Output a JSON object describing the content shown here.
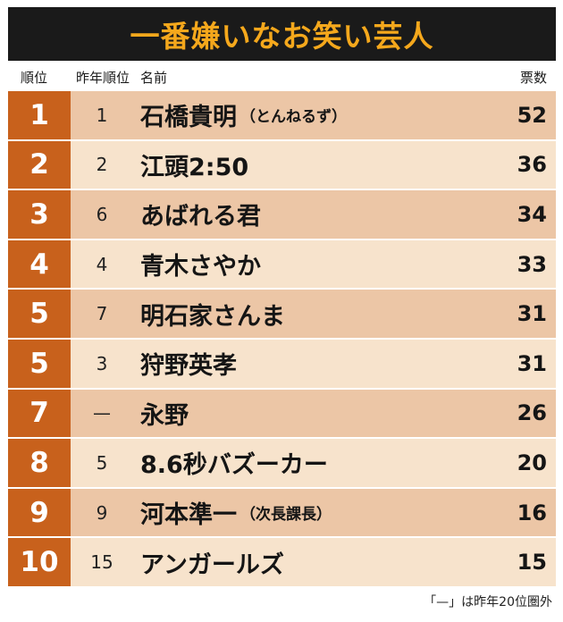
{
  "title": "一番嫌いなお笑い芸人",
  "headers": {
    "rank": "順位",
    "prev_rank": "昨年順位",
    "name": "名前",
    "votes": "票数"
  },
  "footnote": "「—」は昨年20位圏外",
  "colors": {
    "title_background": "#1a1a1a",
    "title_text": "#f5a81c",
    "rank_cell": "#c8611c",
    "row_dark": "#ecc6a6",
    "row_light": "#f7e3cc"
  },
  "chart_data": {
    "type": "table",
    "title": "一番嫌いなお笑い芸人",
    "columns": [
      "順位",
      "昨年順位",
      "名前",
      "票数"
    ],
    "rows": [
      {
        "rank": "1",
        "prev_rank": "1",
        "name": "石橋貴明",
        "note": "（とんねるず）",
        "votes": "52"
      },
      {
        "rank": "2",
        "prev_rank": "2",
        "name": "江頭2:50",
        "note": "",
        "votes": "36"
      },
      {
        "rank": "3",
        "prev_rank": "6",
        "name": "あばれる君",
        "note": "",
        "votes": "34"
      },
      {
        "rank": "4",
        "prev_rank": "4",
        "name": "青木さやか",
        "note": "",
        "votes": "33"
      },
      {
        "rank": "5",
        "prev_rank": "7",
        "name": "明石家さんま",
        "note": "",
        "votes": "31"
      },
      {
        "rank": "5",
        "prev_rank": "3",
        "name": "狩野英孝",
        "note": "",
        "votes": "31"
      },
      {
        "rank": "7",
        "prev_rank": "—",
        "name": "永野",
        "note": "",
        "votes": "26"
      },
      {
        "rank": "8",
        "prev_rank": "5",
        "name": "8.6秒バズーカー",
        "note": "",
        "votes": "20"
      },
      {
        "rank": "9",
        "prev_rank": "9",
        "name": "河本準一",
        "note": "（次長課長）",
        "votes": "16"
      },
      {
        "rank": "10",
        "prev_rank": "15",
        "name": "アンガールズ",
        "note": "",
        "votes": "15"
      }
    ]
  }
}
